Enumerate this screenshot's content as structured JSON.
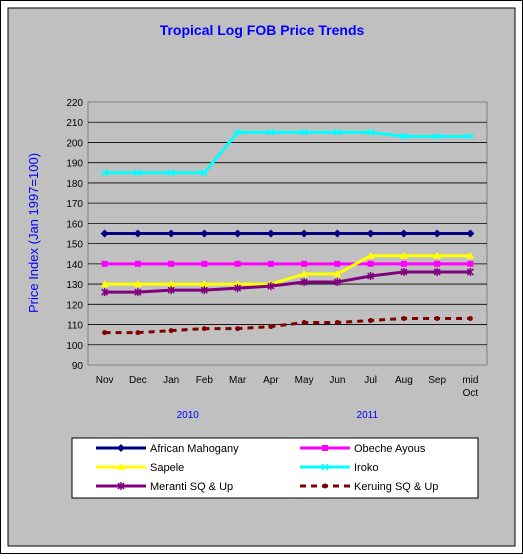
{
  "chart_data": {
    "type": "line",
    "title": "Tropical Log FOB Price Trends",
    "xlabel": "",
    "ylabel": "Price Index (Jan 1997=100)",
    "ylim": [
      90,
      220
    ],
    "ytick_step": 10,
    "grid": true,
    "legend_position": "bottom",
    "categories": [
      "Nov",
      "Dec",
      "Jan",
      "Feb",
      "Mar",
      "Apr",
      "May",
      "Jun",
      "Jul",
      "Aug",
      "Sep",
      "mid Oct"
    ],
    "year_labels": [
      {
        "label": "2010",
        "at_index": 2.5
      },
      {
        "label": "2011",
        "at_index": 7.9
      }
    ],
    "colors": {
      "title": "#0000ff",
      "ylabel": "#0000ff",
      "year_labels": "#0000ff",
      "outer_background": "#c0c0c0",
      "plot_background": "#c0c0c0",
      "gridline": "#000000"
    },
    "series": [
      {
        "name": "African Mahogany",
        "color": "#000080",
        "dash": "",
        "marker": "diamond",
        "values": [
          155,
          155,
          155,
          155,
          155,
          155,
          155,
          155,
          155,
          155,
          155,
          155
        ]
      },
      {
        "name": "Obeche Ayous",
        "color": "#ff00ff",
        "dash": "",
        "marker": "square",
        "values": [
          140,
          140,
          140,
          140,
          140,
          140,
          140,
          140,
          140,
          140,
          140,
          140
        ]
      },
      {
        "name": "Sapele",
        "color": "#ffff00",
        "dash": "",
        "marker": "triangle",
        "values": [
          130,
          130,
          130,
          130,
          130,
          130,
          135,
          135,
          144,
          144,
          144,
          144
        ]
      },
      {
        "name": "Iroko",
        "color": "#00ffff",
        "dash": "",
        "marker": "x",
        "values": [
          185,
          185,
          185,
          185,
          205,
          205,
          205,
          205,
          205,
          203,
          203,
          203
        ]
      },
      {
        "name": "Meranti SQ & Up",
        "color": "#800080",
        "dash": "",
        "marker": "star",
        "values": [
          126,
          126,
          127,
          127,
          128,
          129,
          131,
          131,
          134,
          136,
          136,
          136
        ]
      },
      {
        "name": "Keruing SQ & Up",
        "color": "#800000",
        "dash": "6 5",
        "marker": "circle",
        "values": [
          106,
          106,
          107,
          108,
          108,
          109,
          111,
          111,
          112,
          113,
          113,
          113
        ]
      }
    ]
  }
}
